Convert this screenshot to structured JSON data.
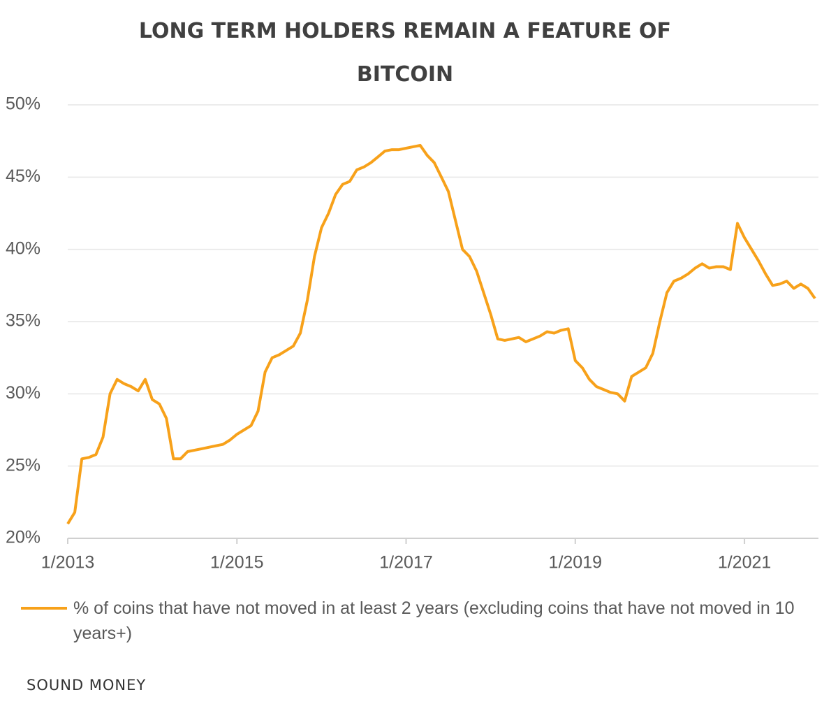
{
  "chart_data": {
    "type": "line",
    "title": "LONG TERM HOLDERS REMAIN A FEATURE OF BITCOIN",
    "source": "SOUND MONEY",
    "legend": "bottom-left",
    "grid": true,
    "x": [
      "2013-01",
      "2013-02",
      "2013-03",
      "2013-04",
      "2013-05",
      "2013-06",
      "2013-07",
      "2013-08",
      "2013-09",
      "2013-10",
      "2013-11",
      "2013-12",
      "2014-01",
      "2014-02",
      "2014-03",
      "2014-04",
      "2014-05",
      "2014-06",
      "2014-07",
      "2014-08",
      "2014-09",
      "2014-10",
      "2014-11",
      "2014-12",
      "2015-01",
      "2015-02",
      "2015-03",
      "2015-04",
      "2015-05",
      "2015-06",
      "2015-07",
      "2015-08",
      "2015-09",
      "2015-10",
      "2015-11",
      "2015-12",
      "2016-01",
      "2016-02",
      "2016-03",
      "2016-04",
      "2016-05",
      "2016-06",
      "2016-07",
      "2016-08",
      "2016-09",
      "2016-10",
      "2016-11",
      "2016-12",
      "2017-01",
      "2017-02",
      "2017-03",
      "2017-04",
      "2017-05",
      "2017-06",
      "2017-07",
      "2017-08",
      "2017-09",
      "2017-10",
      "2017-11",
      "2017-12",
      "2018-01",
      "2018-02",
      "2018-03",
      "2018-04",
      "2018-05",
      "2018-06",
      "2018-07",
      "2018-08",
      "2018-09",
      "2018-10",
      "2018-11",
      "2018-12",
      "2019-01",
      "2019-02",
      "2019-03",
      "2019-04",
      "2019-05",
      "2019-06",
      "2019-07",
      "2019-08",
      "2019-09",
      "2019-10",
      "2019-11",
      "2019-12",
      "2020-01",
      "2020-02",
      "2020-03",
      "2020-04",
      "2020-05",
      "2020-06",
      "2020-07",
      "2020-08",
      "2020-09",
      "2020-10",
      "2020-11",
      "2020-12",
      "2021-01",
      "2021-02",
      "2021-03",
      "2021-04",
      "2021-05",
      "2021-06",
      "2021-07",
      "2021-08",
      "2021-09",
      "2021-10",
      "2021-11"
    ],
    "series": [
      {
        "name": "% of coins that have not moved in at least 2 years (excluding coins that have not moved in 10 years+)",
        "color": "#f7a11a",
        "values": [
          21,
          21.8,
          25.5,
          25.6,
          25.8,
          27,
          30,
          31,
          30.7,
          30.5,
          30.2,
          31,
          29.6,
          29.3,
          28.3,
          25.5,
          25.5,
          26,
          26.1,
          26.2,
          26.3,
          26.4,
          26.5,
          26.8,
          27.2,
          27.5,
          27.8,
          28.8,
          31.5,
          32.5,
          32.7,
          33,
          33.3,
          34.2,
          36.5,
          39.5,
          41.5,
          42.5,
          43.8,
          44.5,
          44.7,
          45.5,
          45.7,
          46,
          46.4,
          46.8,
          46.9,
          46.9,
          47,
          47.1,
          47.2,
          46.5,
          46,
          45,
          44,
          42,
          40,
          39.5,
          38.5,
          37,
          35.5,
          33.8,
          33.7,
          33.8,
          33.9,
          33.6,
          33.8,
          34,
          34.3,
          34.2,
          34.4,
          34.5,
          32.3,
          31.8,
          31,
          30.5,
          30.3,
          30.1,
          30,
          29.5,
          31.2,
          31.5,
          31.8,
          32.8,
          35,
          37,
          37.8,
          38,
          38.3,
          38.7,
          39,
          38.7,
          38.8,
          38.8,
          38.6,
          41.8,
          40.8,
          40,
          39.2,
          38.3,
          37.5,
          37.6,
          37.8,
          37.3,
          37.6,
          37.3,
          36.6
        ]
      }
    ],
    "xlim": [
      "2013-01",
      "2021-11"
    ],
    "xticks": [
      {
        "value": "2013-01",
        "label": "1/2013"
      },
      {
        "value": "2015-01",
        "label": "1/2015"
      },
      {
        "value": "2017-01",
        "label": "1/2017"
      },
      {
        "value": "2019-01",
        "label": "1/2019"
      },
      {
        "value": "2021-01",
        "label": "1/2021"
      }
    ],
    "ylim": [
      20,
      50
    ],
    "yticks": [
      {
        "value": 20,
        "label": "20%"
      },
      {
        "value": 25,
        "label": "25%"
      },
      {
        "value": 30,
        "label": "30%"
      },
      {
        "value": 35,
        "label": "35%"
      },
      {
        "value": 40,
        "label": "40%"
      },
      {
        "value": 45,
        "label": "45%"
      },
      {
        "value": 50,
        "label": "50%"
      }
    ]
  }
}
